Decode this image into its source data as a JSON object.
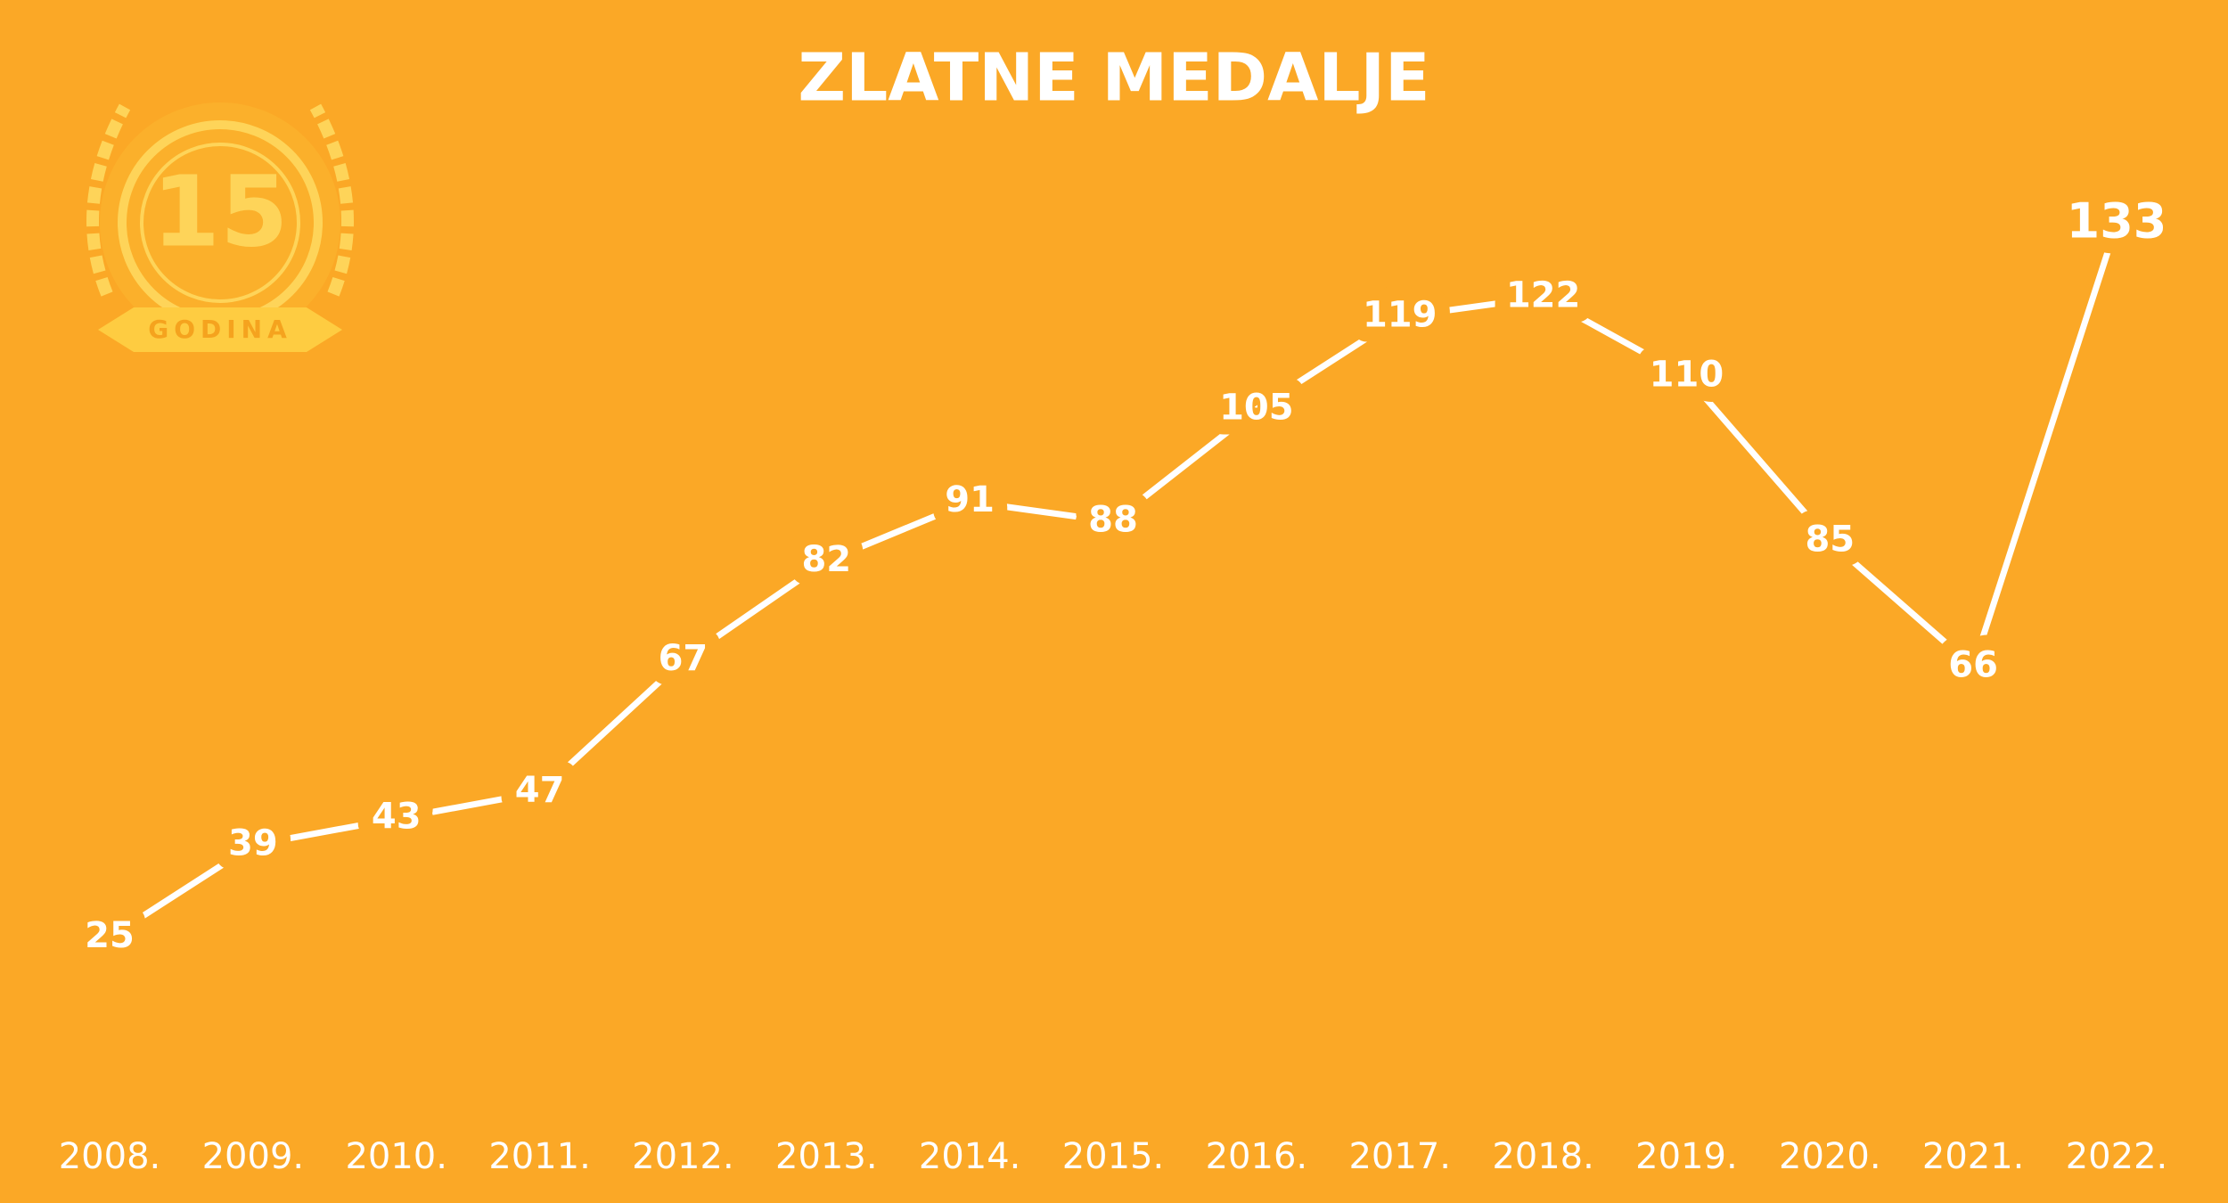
{
  "logo": {
    "number": "15",
    "label": "GODINA"
  },
  "chart_data": {
    "type": "line",
    "title": "ZLATNE MEDALJE",
    "categories": [
      "2008.",
      "2009.",
      "2010.",
      "2011.",
      "2012.",
      "2013.",
      "2014.",
      "2015.",
      "2016.",
      "2017.",
      "2018.",
      "2019.",
      "2020.",
      "2021.",
      "2022."
    ],
    "series": [
      {
        "color": "#ffffff",
        "values": [
          25,
          39,
          43,
          47,
          67,
          82,
          91,
          88,
          105,
          119,
          122,
          110,
          85,
          66,
          133
        ]
      }
    ]
  }
}
